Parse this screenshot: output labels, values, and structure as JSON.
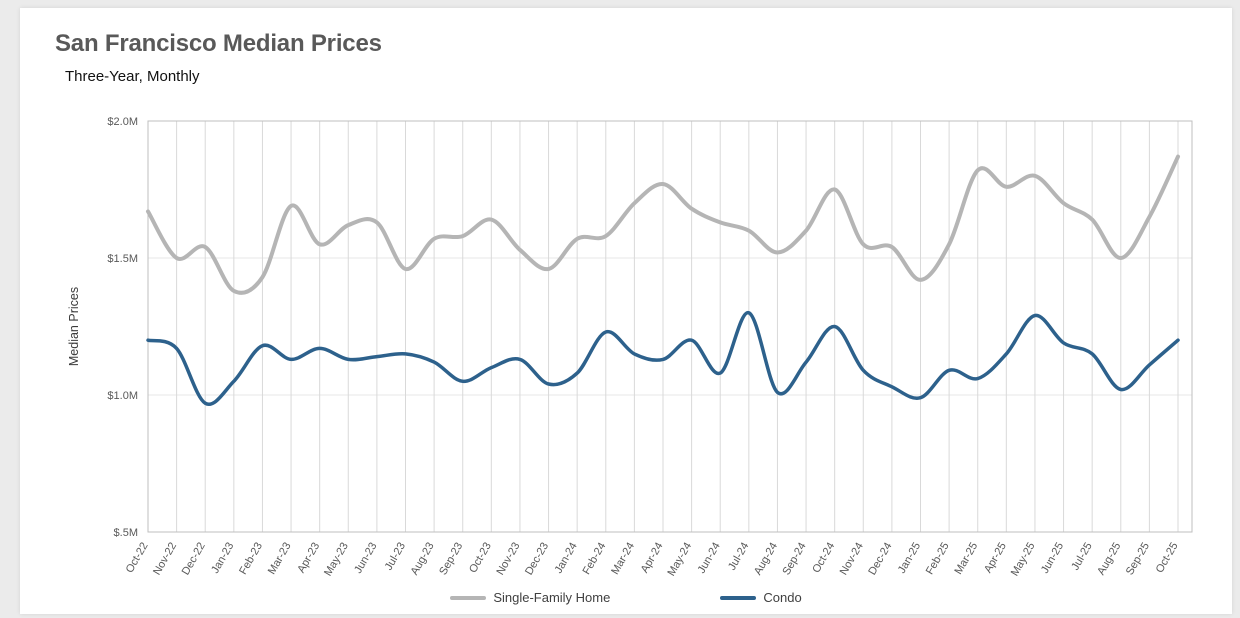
{
  "header": {
    "title": "San Francisco Median Prices",
    "subtitle": "Three-Year, Monthly"
  },
  "chart_data": {
    "type": "line",
    "title": "San Francisco Median Prices",
    "subtitle": "Three-Year, Monthly",
    "xlabel": "",
    "ylabel": "Median Prices",
    "ylim": [
      0.5,
      2.0
    ],
    "y_unit": "millions USD",
    "grid": "vertical-monthly",
    "legend_position": "bottom",
    "y_ticks": [
      {
        "value": 2.0,
        "label": "$2.0M"
      },
      {
        "value": 1.5,
        "label": "$1.5M"
      },
      {
        "value": 1.0,
        "label": "$1.0M"
      },
      {
        "value": 0.5,
        "label": "$.5M"
      }
    ],
    "categories": [
      "Oct-22",
      "Nov-22",
      "Dec-22",
      "Jan-23",
      "Feb-23",
      "Mar-23",
      "Apr-23",
      "May-23",
      "Jun-23",
      "Jul-23",
      "Aug-23",
      "Sep-23",
      "Oct-23",
      "Nov-23",
      "Dec-23",
      "Jan-24",
      "Feb-24",
      "Mar-24",
      "Apr-24",
      "May-24",
      "Jun-24",
      "Jul-24",
      "Aug-24",
      "Sep-24",
      "Oct-24",
      "Nov-24",
      "Dec-24",
      "Jan-25",
      "Feb-25",
      "Mar-25",
      "Apr-25",
      "May-25",
      "Jun-25",
      "Jul-25",
      "Aug-25",
      "Sep-25",
      "Oct-25"
    ],
    "series": [
      {
        "name": "Single-Family Home",
        "color": "#b5b5b5",
        "stroke_width": 4,
        "values": [
          1.67,
          1.5,
          1.54,
          1.38,
          1.43,
          1.69,
          1.55,
          1.62,
          1.63,
          1.46,
          1.57,
          1.58,
          1.64,
          1.53,
          1.46,
          1.57,
          1.58,
          1.7,
          1.77,
          1.68,
          1.63,
          1.6,
          1.52,
          1.6,
          1.75,
          1.55,
          1.54,
          1.42,
          1.55,
          1.82,
          1.76,
          1.8,
          1.7,
          1.64,
          1.5,
          1.65,
          1.87
        ]
      },
      {
        "name": "Condo",
        "color": "#2d618c",
        "stroke_width": 3.5,
        "values": [
          1.2,
          1.17,
          0.97,
          1.05,
          1.18,
          1.13,
          1.17,
          1.13,
          1.14,
          1.15,
          1.12,
          1.05,
          1.1,
          1.13,
          1.04,
          1.08,
          1.23,
          1.15,
          1.13,
          1.2,
          1.08,
          1.3,
          1.01,
          1.12,
          1.25,
          1.09,
          1.03,
          0.99,
          1.09,
          1.06,
          1.15,
          1.29,
          1.19,
          1.15,
          1.02,
          1.11,
          1.2
        ]
      }
    ]
  }
}
